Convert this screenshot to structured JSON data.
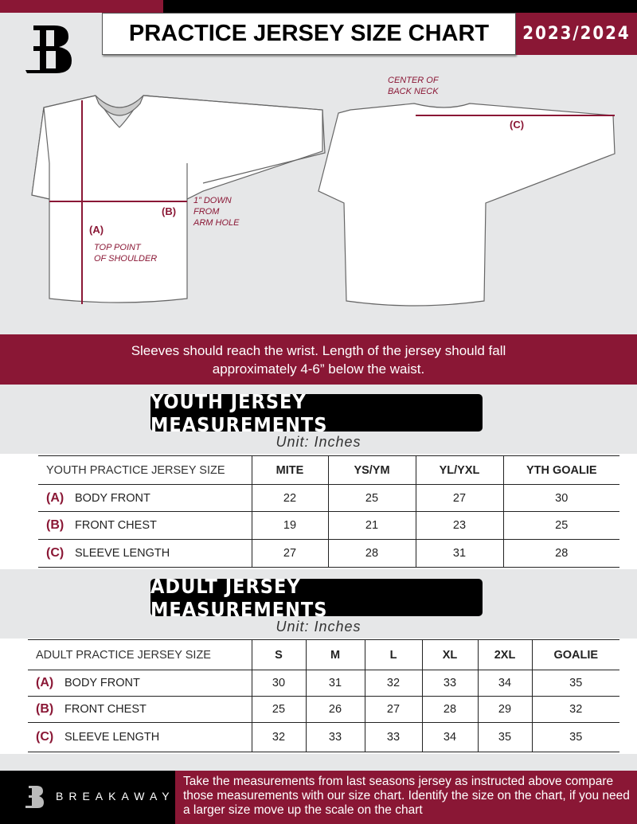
{
  "header": {
    "title": "PRACTICE JERSEY SIZE CHART",
    "season": "2023/2024",
    "logo": "B"
  },
  "diagram": {
    "labels": {
      "a": "(A)",
      "b": "(B)",
      "c": "(C)"
    },
    "notes": {
      "arm_hole": "1” DOWN\nFROM\nARM HOLE",
      "shoulder": "TOP POINT\nOF SHOULDER",
      "back_neck": "CENTER OF\nBACK NECK"
    }
  },
  "instructions": {
    "line1": "Sleeves should reach the wrist. Length of the jersey should fall",
    "line2": "approximately 4-6” below the waist."
  },
  "youth": {
    "title": "YOUTH JERSEY MEASUREMENTS",
    "unit": "Unit: Inches",
    "header": "YOUTH PRACTICE JERSEY SIZE",
    "sizes": [
      "MITE",
      "YS/YM",
      "YL/YXL",
      "YTH GOALIE"
    ],
    "rows": [
      {
        "letter": "(A)",
        "label": "BODY FRONT",
        "values": [
          "22",
          "25",
          "27",
          "30"
        ]
      },
      {
        "letter": "(B)",
        "label": "FRONT CHEST",
        "values": [
          "19",
          "21",
          "23",
          "25"
        ]
      },
      {
        "letter": "(C)",
        "label": "SLEEVE LENGTH",
        "values": [
          "27",
          "28",
          "31",
          "28"
        ]
      }
    ]
  },
  "adult": {
    "title": "ADULT JERSEY MEASUREMENTS",
    "unit": "Unit: Inches",
    "header": "ADULT PRACTICE JERSEY SIZE",
    "sizes": [
      "S",
      "M",
      "L",
      "XL",
      "2XL",
      "GOALIE"
    ],
    "rows": [
      {
        "letter": "(A)",
        "label": "BODY FRONT",
        "values": [
          "30",
          "31",
          "32",
          "33",
          "34",
          "35"
        ]
      },
      {
        "letter": "(B)",
        "label": "FRONT CHEST",
        "values": [
          "25",
          "26",
          "27",
          "28",
          "29",
          "32"
        ]
      },
      {
        "letter": "(C)",
        "label": "SLEEVE LENGTH",
        "values": [
          "32",
          "33",
          "33",
          "34",
          "35",
          "35"
        ]
      }
    ]
  },
  "footer": {
    "brand": "BREAKAWAY",
    "text": "Take the measurements from last seasons jersey as instructed above compare those measurements  with our size chart. Identify the size on the chart, if you need a larger size move up the scale on the chart"
  },
  "colors": {
    "accent": "#8a1735",
    "dark": "#000000",
    "background": "#e6e7e8"
  }
}
